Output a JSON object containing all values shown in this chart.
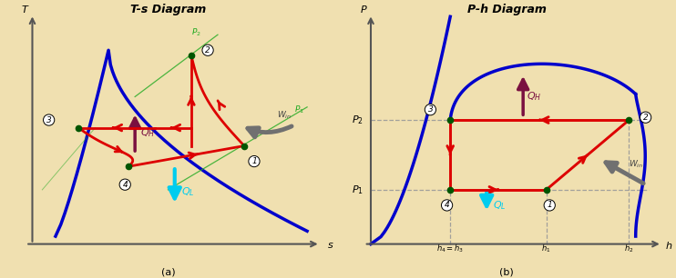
{
  "ts_title": "T-s Diagram",
  "ph_title": "P-h Diagram",
  "caption_a": "(a)",
  "caption_b": "(b)",
  "bg_color": "#f0e0b0",
  "points_color": "#005500",
  "arrow_color": "#dd0000",
  "curve_color": "#0000cc",
  "QH_arrow_color": "#7a1040",
  "QL_arrow_color": "#00ccee",
  "Win_arrow_color": "#707070",
  "green_line_color": "#22aa22",
  "dashed_color": "#999999"
}
